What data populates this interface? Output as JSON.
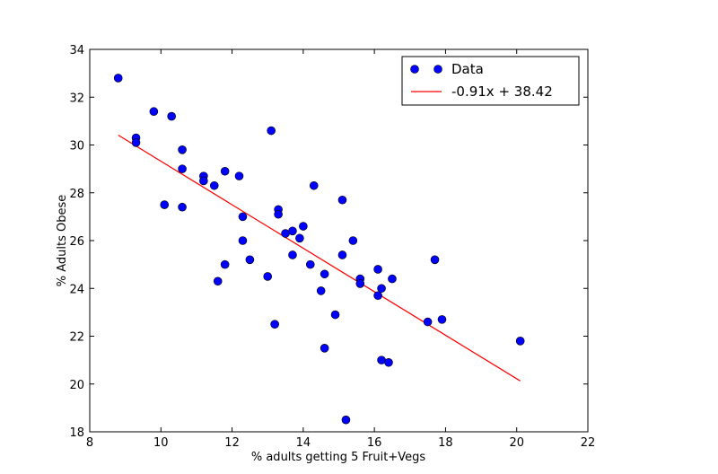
{
  "chart_data": {
    "type": "scatter",
    "title": "",
    "xlabel": "% adults getting 5 Fruit+Vegs",
    "ylabel": "% Adults Obese",
    "xlim": [
      8,
      22
    ],
    "ylim": [
      18,
      34
    ],
    "xticks": [
      8,
      10,
      12,
      14,
      16,
      18,
      20,
      22
    ],
    "yticks": [
      18,
      20,
      22,
      24,
      26,
      28,
      30,
      32,
      34
    ],
    "grid": false,
    "legend_position": "top-right",
    "series": [
      {
        "name": "Data",
        "kind": "points",
        "color": "#0000ff",
        "x": [
          8.8,
          9.3,
          9.3,
          9.8,
          10.3,
          10.6,
          10.6,
          10.1,
          10.6,
          11.2,
          11.2,
          11.5,
          11.8,
          12.2,
          12.3,
          11.6,
          11.8,
          12.3,
          12.5,
          13.1,
          13.0,
          13.2,
          13.3,
          13.3,
          13.5,
          13.7,
          13.7,
          13.9,
          14.0,
          14.2,
          14.3,
          14.5,
          14.6,
          14.6,
          14.9,
          15.1,
          15.1,
          15.4,
          15.6,
          15.6,
          15.2,
          16.1,
          16.1,
          16.2,
          16.2,
          16.4,
          16.5,
          17.5,
          17.7,
          17.9,
          20.1
        ],
        "y": [
          32.8,
          30.3,
          30.1,
          31.4,
          31.2,
          29.8,
          29.0,
          27.5,
          27.4,
          28.7,
          28.5,
          28.3,
          28.9,
          28.7,
          27.0,
          24.3,
          25.0,
          26.0,
          25.2,
          30.6,
          24.5,
          22.5,
          27.3,
          27.1,
          26.3,
          26.4,
          25.4,
          26.1,
          26.6,
          25.0,
          28.3,
          23.9,
          24.6,
          21.5,
          22.9,
          27.7,
          25.4,
          26.0,
          24.4,
          24.2,
          18.5,
          24.8,
          23.7,
          24.0,
          21.0,
          20.9,
          24.4,
          22.6,
          25.2,
          22.7,
          21.8
        ]
      },
      {
        "name": "-0.91x + 38.42",
        "kind": "line",
        "color": "#ff0000",
        "slope": -0.91,
        "intercept": 38.42,
        "x_range": [
          8.8,
          20.1
        ]
      }
    ]
  }
}
